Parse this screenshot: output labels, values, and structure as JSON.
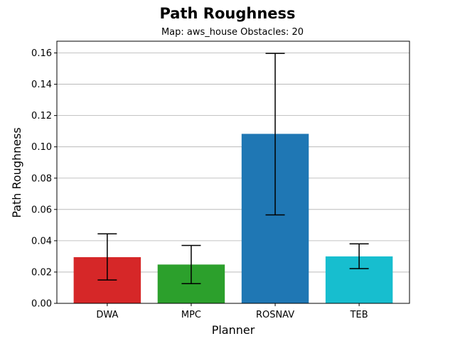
{
  "chart_data": {
    "type": "bar",
    "title": "Path Roughness",
    "subtitle": "Map: aws_house Obstacles: 20",
    "xlabel": "Planner",
    "ylabel": "Path Roughness",
    "categories": [
      "DWA",
      "MPC",
      "ROSNAV",
      "TEB"
    ],
    "values": [
      0.0295,
      0.0248,
      0.1083,
      0.03
    ],
    "error_low": [
      0.0149,
      0.0126,
      0.0565,
      0.0222
    ],
    "error_high": [
      0.0444,
      0.037,
      0.1597,
      0.038
    ],
    "colors": [
      "#d62728",
      "#2ca02c",
      "#1f77b4",
      "#17becf"
    ],
    "ylim": [
      0,
      0.1675
    ],
    "yticks": [
      "0.00",
      "0.02",
      "0.04",
      "0.06",
      "0.08",
      "0.10",
      "0.12",
      "0.14",
      "0.16"
    ],
    "grid": "y"
  }
}
